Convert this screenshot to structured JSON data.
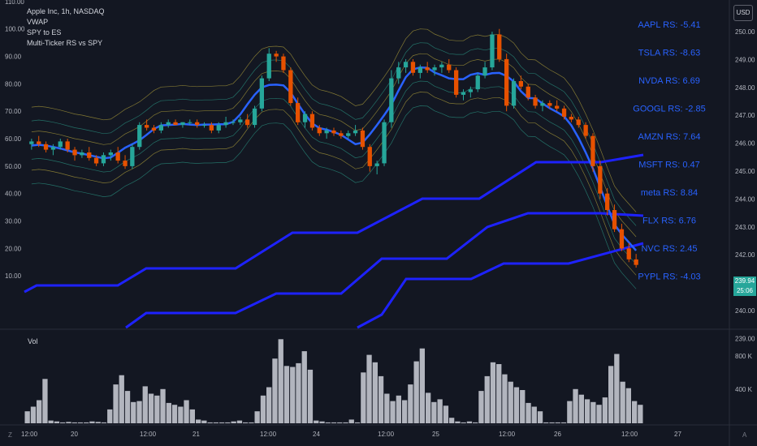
{
  "legend": {
    "symbol": "Apple Inc, 1h, NASDAQ",
    "indicators": [
      "VWAP",
      "SPY to ES",
      "Multi-Ticker RS vs SPY"
    ]
  },
  "currency_button": "USD",
  "last_price": {
    "price": "239.94",
    "countdown": "25:06"
  },
  "volume_label": "Vol",
  "corner_labels": {
    "left": "Z",
    "right": "A"
  },
  "colors": {
    "up": "#26a69a",
    "down": "#e65100",
    "background": "#131722",
    "vwap": "#2962ff",
    "steps": "#1e22ff",
    "rs_text": "#2962ff",
    "volume": "#b2b5be"
  },
  "chart_data": {
    "type": "candlestick",
    "x_ticks": [
      "12:00",
      "20",
      "12:00",
      "21",
      "12:00",
      "24",
      "12:00",
      "25",
      "12:00",
      "26",
      "12:00",
      "27"
    ],
    "left_axis": {
      "ylim": [
        0,
        115
      ],
      "ticks": [
        "110.00",
        "100.00",
        "90.00",
        "80.00",
        "70.00",
        "60.00",
        "50.00",
        "40.00",
        "30.00",
        "20.00",
        "10.00"
      ]
    },
    "right_axis": {
      "ylim": [
        238,
        251
      ],
      "ticks": [
        "250.00",
        "249.00",
        "248.00",
        "247.00",
        "246.00",
        "245.00",
        "244.00",
        "243.00",
        "242.00",
        "241.00",
        "240.00",
        "239.00"
      ]
    },
    "candles": [
      [
        58,
        60,
        56,
        59
      ],
      [
        59,
        61,
        57,
        58
      ],
      [
        58,
        59,
        55,
        56
      ],
      [
        56,
        58,
        54,
        57
      ],
      [
        57,
        60,
        56,
        59
      ],
      [
        59,
        60,
        55,
        56
      ],
      [
        56,
        57,
        52,
        54
      ],
      [
        54,
        56,
        53,
        55
      ],
      [
        55,
        57,
        52,
        53
      ],
      [
        53,
        54,
        50,
        51
      ],
      [
        51,
        55,
        50,
        54
      ],
      [
        54,
        56,
        52,
        55
      ],
      [
        55,
        57,
        51,
        52
      ],
      [
        52,
        54,
        49,
        50
      ],
      [
        50,
        58,
        49,
        57
      ],
      [
        57,
        66,
        56,
        65
      ],
      [
        65,
        67,
        63,
        64
      ],
      [
        64,
        65,
        62,
        63
      ],
      [
        63,
        66,
        62,
        65
      ],
      [
        65,
        67,
        64,
        66
      ],
      [
        66,
        67,
        65,
        65
      ],
      [
        65,
        66,
        64,
        66
      ],
      [
        66,
        67,
        65,
        66
      ],
      [
        66,
        67,
        64,
        65
      ],
      [
        65,
        66,
        64,
        65
      ],
      [
        65,
        66,
        62,
        63
      ],
      [
        63,
        66,
        62,
        65
      ],
      [
        65,
        68,
        64,
        66
      ],
      [
        66,
        67,
        65,
        66
      ],
      [
        66,
        68,
        65,
        67
      ],
      [
        67,
        69,
        64,
        65
      ],
      [
        65,
        72,
        64,
        71
      ],
      [
        71,
        83,
        70,
        82
      ],
      [
        82,
        93,
        81,
        91
      ],
      [
        91,
        92,
        88,
        90
      ],
      [
        90,
        91,
        84,
        85
      ],
      [
        85,
        86,
        72,
        73
      ],
      [
        73,
        75,
        65,
        66
      ],
      [
        66,
        70,
        64,
        69
      ],
      [
        69,
        70,
        63,
        64
      ],
      [
        64,
        65,
        61,
        62
      ],
      [
        62,
        64,
        60,
        63
      ],
      [
        63,
        64,
        61,
        62
      ],
      [
        62,
        63,
        60,
        61
      ],
      [
        61,
        63,
        60,
        62
      ],
      [
        62,
        65,
        61,
        63
      ],
      [
        63,
        64,
        56,
        57
      ],
      [
        57,
        58,
        48,
        50
      ],
      [
        50,
        52,
        47,
        51
      ],
      [
        51,
        67,
        50,
        66
      ],
      [
        66,
        85,
        64,
        82
      ],
      [
        82,
        88,
        80,
        86
      ],
      [
        86,
        89,
        84,
        88
      ],
      [
        88,
        89,
        83,
        84
      ],
      [
        84,
        87,
        82,
        86
      ],
      [
        86,
        88,
        84,
        85
      ],
      [
        85,
        87,
        83,
        86
      ],
      [
        86,
        88,
        84,
        87
      ],
      [
        87,
        89,
        84,
        85
      ],
      [
        85,
        86,
        75,
        76
      ],
      [
        76,
        78,
        74,
        77
      ],
      [
        77,
        79,
        75,
        78
      ],
      [
        78,
        84,
        77,
        83
      ],
      [
        83,
        88,
        82,
        86
      ],
      [
        86,
        99,
        85,
        98
      ],
      [
        98,
        100,
        88,
        89
      ],
      [
        89,
        91,
        70,
        72
      ],
      [
        72,
        82,
        71,
        81
      ],
      [
        81,
        83,
        78,
        79
      ],
      [
        79,
        80,
        74,
        75
      ],
      [
        75,
        76,
        71,
        72
      ],
      [
        72,
        74,
        70,
        73
      ],
      [
        73,
        74,
        71,
        72
      ],
      [
        72,
        74,
        70,
        71
      ],
      [
        71,
        72,
        67,
        68
      ],
      [
        68,
        69,
        66,
        67
      ],
      [
        67,
        68,
        64,
        65
      ],
      [
        65,
        66,
        60,
        61
      ],
      [
        61,
        62,
        48,
        50
      ],
      [
        50,
        52,
        38,
        40
      ],
      [
        40,
        42,
        32,
        34
      ],
      [
        34,
        36,
        26,
        27
      ],
      [
        27,
        29,
        19,
        20
      ],
      [
        20,
        22,
        15,
        16
      ],
      [
        16,
        18,
        13,
        14
      ]
    ],
    "rs_labels": [
      {
        "ticker": "AAPL",
        "value": "-5.41"
      },
      {
        "ticker": "TSLA",
        "value": "-8.63"
      },
      {
        "ticker": "NVDA",
        "value": "6.69"
      },
      {
        "ticker": "GOOGL",
        "value": "-2.85"
      },
      {
        "ticker": "AMZN",
        "value": "7.64"
      },
      {
        "ticker": "MSFT",
        "value": "0.47"
      },
      {
        "ticker": "meta",
        "value": "8.84"
      },
      {
        "ticker": "FLX",
        "value": "6.76"
      },
      {
        "ticker": "NVC",
        "value": "2.45"
      },
      {
        "ticker": "PYPL",
        "value": "-4.03"
      }
    ],
    "volume": {
      "ylim": [
        0,
        1000
      ],
      "ticks": [
        "800 K",
        "400 K"
      ],
      "values": [
        130,
        180,
        250,
        480,
        30,
        20,
        10,
        15,
        10,
        10,
        10,
        20,
        15,
        10,
        150,
        420,
        520,
        350,
        230,
        240,
        400,
        320,
        300,
        370,
        220,
        200,
        180,
        250,
        150,
        40,
        30,
        10,
        10,
        10,
        10,
        20,
        30,
        10,
        10,
        130,
        300,
        390,
        700,
        910,
        620,
        610,
        650,
        780,
        580,
        30,
        20,
        10,
        10,
        10,
        10,
        40,
        10,
        550,
        740,
        660,
        510,
        320,
        240,
        300,
        250,
        420,
        670,
        810,
        330,
        230,
        260,
        190,
        60,
        20,
        10,
        20,
        10,
        350,
        510,
        660,
        640,
        530,
        450,
        390,
        360,
        220,
        180,
        130,
        10,
        10,
        10,
        10,
        240,
        370,
        310,
        260,
        230,
        200,
        280,
        620,
        750,
        450,
        380,
        240,
        200
      ]
    }
  }
}
